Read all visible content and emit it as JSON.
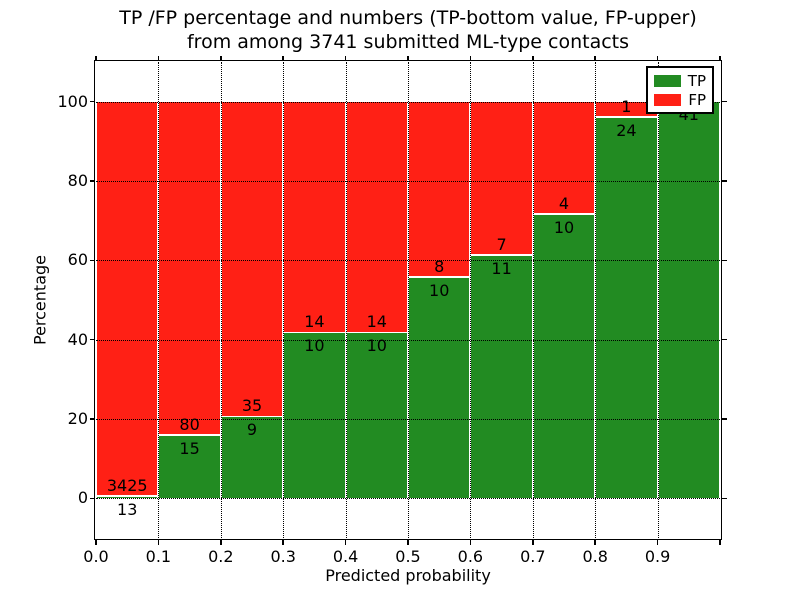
{
  "title": {
    "line1": "TP /FP percentage and numbers (TP-bottom value, FP-upper)",
    "line2": "from among 3741 submitted ML-type contacts"
  },
  "axes": {
    "xlabel": "Predicted probability",
    "ylabel": "Percentage",
    "x_tick_labels": [
      "0.0",
      "0.1",
      "0.2",
      "0.3",
      "0.4",
      "0.5",
      "0.6",
      "0.7",
      "0.8",
      "0.9"
    ],
    "y_tick_labels": [
      "0",
      "20",
      "40",
      "60",
      "80",
      "100"
    ]
  },
  "legend": [
    {
      "label": "TP",
      "color": "#228b22"
    },
    {
      "label": "FP",
      "color": "#ff2015"
    }
  ],
  "chart_data": {
    "type": "bar",
    "stacked": true,
    "title": "TP /FP percentage and numbers (TP-bottom value, FP-upper)\nfrom among 3741 submitted ML-type contacts",
    "xlabel": "Predicted probability",
    "ylabel": "Percentage",
    "xlim": [
      0.0,
      1.0
    ],
    "ylim": [
      -10,
      110
    ],
    "grid": "dotted",
    "legend_position": "upper right",
    "bin_width": 0.1,
    "total_contacts": 3741,
    "colors": {
      "tp": "#228b22",
      "fp": "#ff2015"
    },
    "bins": [
      {
        "x_start": 0.0,
        "tp": 13,
        "fp": 3425,
        "tp_pct": 0.38
      },
      {
        "x_start": 0.1,
        "tp": 15,
        "fp": 80,
        "tp_pct": 15.79
      },
      {
        "x_start": 0.2,
        "tp": 9,
        "fp": 35,
        "tp_pct": 20.45
      },
      {
        "x_start": 0.3,
        "tp": 10,
        "fp": 14,
        "tp_pct": 41.67
      },
      {
        "x_start": 0.4,
        "tp": 10,
        "fp": 14,
        "tp_pct": 41.67
      },
      {
        "x_start": 0.5,
        "tp": 10,
        "fp": 8,
        "tp_pct": 55.56
      },
      {
        "x_start": 0.6,
        "tp": 11,
        "fp": 7,
        "tp_pct": 61.11
      },
      {
        "x_start": 0.7,
        "tp": 10,
        "fp": 4,
        "tp_pct": 71.43
      },
      {
        "x_start": 0.8,
        "tp": 24,
        "fp": 1,
        "tp_pct": 96.0
      },
      {
        "x_start": 0.9,
        "tp": 41,
        "fp": null,
        "tp_pct": 100.0
      }
    ]
  }
}
